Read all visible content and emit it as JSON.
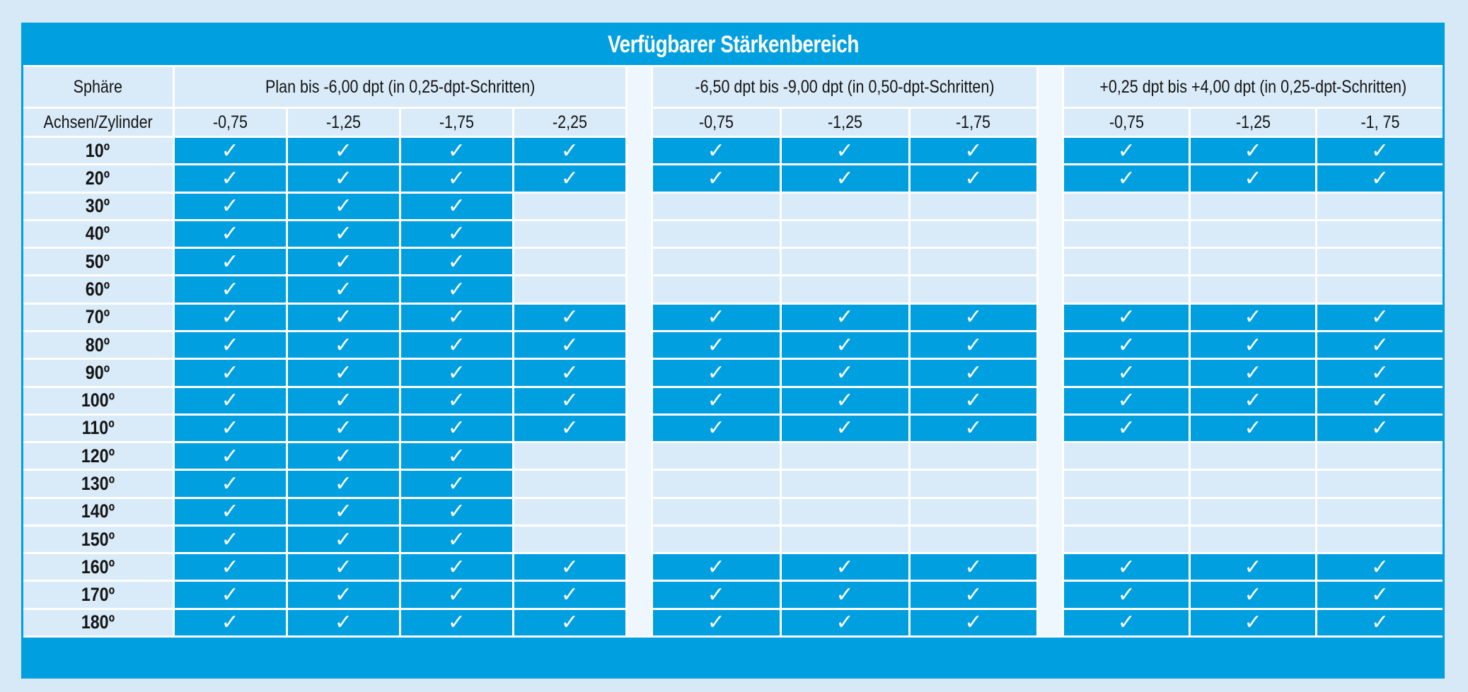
{
  "title": "Verfügbarer Stärkenbereich",
  "colors": {
    "accent_blue": "#009fdf",
    "cell_light": "#d9eaf8",
    "divider_strip": "#eef7fd",
    "grid_line": "#ffffff",
    "page_background": "#d7e9f7",
    "title_text": "#ffffff",
    "header_text": "#141414"
  },
  "chart_data": {
    "type": "table",
    "title": "Verfügbarer Stärkenbereich",
    "row_axis_header": "Sphäre",
    "row_axis_subheader": "Achsen/Zylinder",
    "check_glyph": "✓",
    "groups": [
      {
        "label": "Plan bis -6,00 dpt (in 0,25-dpt-Schritten)",
        "columns": [
          "-0,75",
          "-1,25",
          "-1,75",
          "-2,25"
        ]
      },
      {
        "label": "-6,50 dpt bis -9,00 dpt (in 0,50-dpt-Schritten)",
        "columns": [
          "-0,75",
          "-1,25",
          "-1,75"
        ]
      },
      {
        "label": "+0,25 dpt bis +4,00 dpt (in 0,25-dpt-Schritten)",
        "columns": [
          "-0,75",
          "-1,25",
          "-1, 75"
        ]
      }
    ],
    "rows": [
      {
        "axis": "10º",
        "checks": [
          [
            1,
            1,
            1,
            1
          ],
          [
            1,
            1,
            1
          ],
          [
            1,
            1,
            1
          ]
        ]
      },
      {
        "axis": "20º",
        "checks": [
          [
            1,
            1,
            1,
            1
          ],
          [
            1,
            1,
            1
          ],
          [
            1,
            1,
            1
          ]
        ]
      },
      {
        "axis": "30º",
        "checks": [
          [
            1,
            1,
            1,
            0
          ],
          [
            0,
            0,
            0
          ],
          [
            0,
            0,
            0
          ]
        ]
      },
      {
        "axis": "40º",
        "checks": [
          [
            1,
            1,
            1,
            0
          ],
          [
            0,
            0,
            0
          ],
          [
            0,
            0,
            0
          ]
        ]
      },
      {
        "axis": "50º",
        "checks": [
          [
            1,
            1,
            1,
            0
          ],
          [
            0,
            0,
            0
          ],
          [
            0,
            0,
            0
          ]
        ]
      },
      {
        "axis": "60º",
        "checks": [
          [
            1,
            1,
            1,
            0
          ],
          [
            0,
            0,
            0
          ],
          [
            0,
            0,
            0
          ]
        ]
      },
      {
        "axis": "70º",
        "checks": [
          [
            1,
            1,
            1,
            1
          ],
          [
            1,
            1,
            1
          ],
          [
            1,
            1,
            1
          ]
        ]
      },
      {
        "axis": "80º",
        "checks": [
          [
            1,
            1,
            1,
            1
          ],
          [
            1,
            1,
            1
          ],
          [
            1,
            1,
            1
          ]
        ]
      },
      {
        "axis": "90º",
        "checks": [
          [
            1,
            1,
            1,
            1
          ],
          [
            1,
            1,
            1
          ],
          [
            1,
            1,
            1
          ]
        ]
      },
      {
        "axis": "100º",
        "checks": [
          [
            1,
            1,
            1,
            1
          ],
          [
            1,
            1,
            1
          ],
          [
            1,
            1,
            1
          ]
        ]
      },
      {
        "axis": "110º",
        "checks": [
          [
            1,
            1,
            1,
            1
          ],
          [
            1,
            1,
            1
          ],
          [
            1,
            1,
            1
          ]
        ]
      },
      {
        "axis": "120º",
        "checks": [
          [
            1,
            1,
            1,
            0
          ],
          [
            0,
            0,
            0
          ],
          [
            0,
            0,
            0
          ]
        ]
      },
      {
        "axis": "130º",
        "checks": [
          [
            1,
            1,
            1,
            0
          ],
          [
            0,
            0,
            0
          ],
          [
            0,
            0,
            0
          ]
        ]
      },
      {
        "axis": "140º",
        "checks": [
          [
            1,
            1,
            1,
            0
          ],
          [
            0,
            0,
            0
          ],
          [
            0,
            0,
            0
          ]
        ]
      },
      {
        "axis": "150º",
        "checks": [
          [
            1,
            1,
            1,
            0
          ],
          [
            0,
            0,
            0
          ],
          [
            0,
            0,
            0
          ]
        ]
      },
      {
        "axis": "160º",
        "checks": [
          [
            1,
            1,
            1,
            1
          ],
          [
            1,
            1,
            1
          ],
          [
            1,
            1,
            1
          ]
        ]
      },
      {
        "axis": "170º",
        "checks": [
          [
            1,
            1,
            1,
            1
          ],
          [
            1,
            1,
            1
          ],
          [
            1,
            1,
            1
          ]
        ]
      },
      {
        "axis": "180º",
        "checks": [
          [
            1,
            1,
            1,
            1
          ],
          [
            1,
            1,
            1
          ],
          [
            1,
            1,
            1
          ]
        ]
      }
    ]
  }
}
